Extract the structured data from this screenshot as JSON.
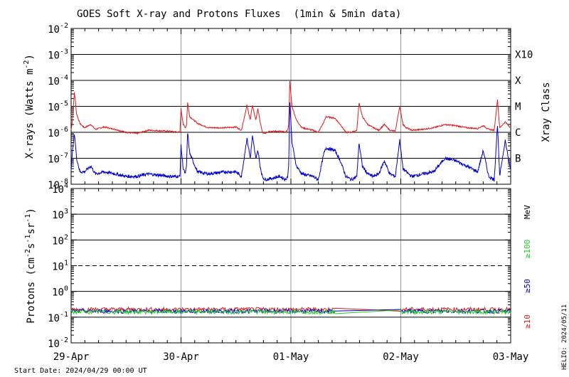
{
  "chart_data": [
    {
      "type": "line",
      "title": "GOES Soft X-ray and Protons Fluxes",
      "subtitle": "(1min & 5min data)",
      "ylabel": "X-rays (Watts m^-2)",
      "y_scale": "log",
      "ylim": [
        1e-08,
        0.01
      ],
      "y_ticks": [
        {
          "base": "10",
          "exp": "-8"
        },
        {
          "base": "10",
          "exp": "-7"
        },
        {
          "base": "10",
          "exp": "-6"
        },
        {
          "base": "10",
          "exp": "-5"
        },
        {
          "base": "10",
          "exp": "-4"
        },
        {
          "base": "10",
          "exp": "-3"
        },
        {
          "base": "10",
          "exp": "-2"
        }
      ],
      "right_axis_title": "Xray Class",
      "class_labels": [
        {
          "label": "B",
          "value": 1e-07
        },
        {
          "label": "C",
          "value": 1e-06
        },
        {
          "label": "M",
          "value": 1e-05
        },
        {
          "label": "X",
          "value": 0.0001
        },
        {
          "label": "X10",
          "value": 0.001
        }
      ],
      "grid": true,
      "x_unit": "days since 2024-04-29 00:00 UT",
      "series": [
        {
          "color": "#e41a1c",
          "points": [
            [
              0,
              1.2e-06
            ],
            [
              0.01,
              2.5e-06
            ],
            [
              0.03,
              3.5e-05
            ],
            [
              0.05,
              5e-06
            ],
            [
              0.08,
              2.2e-06
            ],
            [
              0.12,
              1.5e-06
            ],
            [
              0.18,
              2e-06
            ],
            [
              0.22,
              1.3e-06
            ],
            [
              0.3,
              1.6e-06
            ],
            [
              0.4,
              1.3e-06
            ],
            [
              0.5,
              1e-06
            ],
            [
              0.6,
              9e-07
            ],
            [
              0.7,
              1.2e-06
            ],
            [
              0.9,
              1.1e-06
            ],
            [
              0.99,
              1e-06
            ],
            [
              1.0,
              8e-06
            ],
            [
              1.02,
              2e-06
            ],
            [
              1.04,
              1.5e-06
            ],
            [
              1.05,
              2e-06
            ],
            [
              1.06,
              1.4e-05
            ],
            [
              1.08,
              4e-06
            ],
            [
              1.15,
              2.2e-06
            ],
            [
              1.25,
              1.5e-06
            ],
            [
              1.4,
              1.5e-06
            ],
            [
              1.5,
              1.6e-06
            ],
            [
              1.55,
              1.2e-06
            ],
            [
              1.6,
              1.1e-05
            ],
            [
              1.63,
              3e-06
            ],
            [
              1.65,
              1.1e-05
            ],
            [
              1.68,
              3e-06
            ],
            [
              1.7,
              8e-06
            ],
            [
              1.72,
              2.5e-06
            ],
            [
              1.74,
              1e-06
            ],
            [
              1.76,
              9e-07
            ],
            [
              1.8,
              1.1e-06
            ],
            [
              1.9,
              1.1e-06
            ],
            [
              1.95,
              1e-06
            ],
            [
              1.97,
              1.2e-06
            ],
            [
              1.98,
              2e-06
            ],
            [
              1.99,
              9e-05
            ],
            [
              2.01,
              1e-05
            ],
            [
              2.05,
              3e-06
            ],
            [
              2.1,
              1.5e-06
            ],
            [
              2.2,
              1.2e-06
            ],
            [
              2.25,
              1e-06
            ],
            [
              2.3,
              2.5e-06
            ],
            [
              2.32,
              4e-06
            ],
            [
              2.4,
              3.5e-06
            ],
            [
              2.45,
              2e-06
            ],
            [
              2.5,
              1e-06
            ],
            [
              2.55,
              1e-06
            ],
            [
              2.6,
              1.2e-06
            ],
            [
              2.62,
              1.4e-05
            ],
            [
              2.65,
              4e-06
            ],
            [
              2.7,
              2e-06
            ],
            [
              2.75,
              1.5e-06
            ],
            [
              2.8,
              1.2e-06
            ],
            [
              2.85,
              2e-06
            ],
            [
              2.9,
              1.2e-06
            ],
            [
              2.95,
              1.1e-06
            ],
            [
              2.99,
              1e-05
            ],
            [
              3.02,
              2e-06
            ],
            [
              3.05,
              1.5e-06
            ],
            [
              3.1,
              1.2e-06
            ],
            [
              3.2,
              1.3e-06
            ],
            [
              3.3,
              1.5e-06
            ],
            [
              3.4,
              2e-06
            ],
            [
              3.5,
              1.8e-06
            ],
            [
              3.6,
              1.5e-06
            ],
            [
              3.7,
              1.4e-06
            ],
            [
              3.75,
              1.8e-06
            ],
            [
              3.8,
              1.3e-06
            ],
            [
              3.85,
              1.2e-06
            ],
            [
              3.88,
              1.8e-05
            ],
            [
              3.9,
              1.5e-06
            ],
            [
              3.95,
              2.5e-06
            ],
            [
              4.0,
              1.5e-06
            ]
          ]
        },
        {
          "color": "#0000cc",
          "points": [
            [
              0,
              3e-08
            ],
            [
              0.01,
              1.5e-07
            ],
            [
              0.03,
              9e-07
            ],
            [
              0.05,
              1e-07
            ],
            [
              0.08,
              3e-08
            ],
            [
              0.12,
              3e-08
            ],
            [
              0.18,
              5e-08
            ],
            [
              0.22,
              2.5e-08
            ],
            [
              0.3,
              3e-08
            ],
            [
              0.4,
              2.5e-08
            ],
            [
              0.5,
              2e-08
            ],
            [
              0.6,
              2e-08
            ],
            [
              0.7,
              2.5e-08
            ],
            [
              0.9,
              2e-08
            ],
            [
              0.99,
              2e-08
            ],
            [
              1.0,
              3e-07
            ],
            [
              1.02,
              4e-08
            ],
            [
              1.04,
              2.5e-08
            ],
            [
              1.05,
              5e-08
            ],
            [
              1.06,
              1e-06
            ],
            [
              1.08,
              1.5e-07
            ],
            [
              1.15,
              3e-08
            ],
            [
              1.25,
              2.5e-08
            ],
            [
              1.4,
              3e-08
            ],
            [
              1.5,
              3e-08
            ],
            [
              1.55,
              2e-08
            ],
            [
              1.6,
              6e-07
            ],
            [
              1.63,
              1e-07
            ],
            [
              1.65,
              7e-07
            ],
            [
              1.68,
              1e-07
            ],
            [
              1.7,
              2e-07
            ],
            [
              1.72,
              5e-08
            ],
            [
              1.74,
              2e-08
            ],
            [
              1.76,
              1.5e-08
            ],
            [
              1.8,
              1.6e-08
            ],
            [
              1.9,
              2e-08
            ],
            [
              1.95,
              1.5e-08
            ],
            [
              1.97,
              2e-08
            ],
            [
              1.98,
              5e-08
            ],
            [
              1.99,
              1.5e-05
            ],
            [
              2.01,
              4e-07
            ],
            [
              2.05,
              5e-08
            ],
            [
              2.1,
              2.5e-08
            ],
            [
              2.2,
              2e-08
            ],
            [
              2.25,
              1.5e-08
            ],
            [
              2.3,
              1.5e-07
            ],
            [
              2.32,
              2.5e-07
            ],
            [
              2.4,
              2e-07
            ],
            [
              2.45,
              8e-08
            ],
            [
              2.5,
              2e-08
            ],
            [
              2.55,
              1.5e-08
            ],
            [
              2.6,
              2e-08
            ],
            [
              2.62,
              4e-07
            ],
            [
              2.65,
              5e-08
            ],
            [
              2.7,
              2.5e-08
            ],
            [
              2.75,
              2e-08
            ],
            [
              2.8,
              2.5e-08
            ],
            [
              2.85,
              8e-08
            ],
            [
              2.9,
              2.5e-08
            ],
            [
              2.95,
              2e-08
            ],
            [
              2.99,
              5e-07
            ],
            [
              3.02,
              4e-08
            ],
            [
              3.05,
              3e-08
            ],
            [
              3.1,
              2e-08
            ],
            [
              3.2,
              2.5e-08
            ],
            [
              3.3,
              3e-08
            ],
            [
              3.4,
              1e-07
            ],
            [
              3.5,
              8e-08
            ],
            [
              3.6,
              5e-08
            ],
            [
              3.7,
              3e-08
            ],
            [
              3.75,
              2e-07
            ],
            [
              3.8,
              2e-08
            ],
            [
              3.85,
              1.5e-08
            ],
            [
              3.88,
              2e-06
            ],
            [
              3.9,
              2e-08
            ],
            [
              3.95,
              5e-07
            ],
            [
              4.0,
              3e-08
            ]
          ]
        }
      ]
    },
    {
      "type": "line",
      "ylabel": "Protons (cm^-2 s^-1 sr^-1)",
      "y_scale": "log",
      "ylim": [
        0.01,
        10000
      ],
      "y_ticks": [
        {
          "base": "10",
          "exp": "-2"
        },
        {
          "base": "10",
          "exp": "-1"
        },
        {
          "base": "10",
          "exp": "0"
        },
        {
          "base": "10",
          "exp": "1"
        },
        {
          "base": "10",
          "exp": "2"
        },
        {
          "base": "10",
          "exp": "3"
        },
        {
          "base": "10",
          "exp": "4"
        }
      ],
      "dashed_threshold": 10,
      "grid": true,
      "legend": [
        {
          "label": "MeV",
          "color": "#000000"
        },
        {
          "label": "≥100",
          "color": "#22cc22"
        },
        {
          "label": "≥50",
          "color": "#0000cc"
        },
        {
          "label": "≥10",
          "color": "#e41a1c"
        }
      ],
      "series": [
        {
          "name": "≥10",
          "color": "#e41a1c",
          "level": 0.2
        },
        {
          "name": "≥50",
          "color": "#0000cc",
          "level": 0.17
        },
        {
          "name": "≥100",
          "color": "#22cc22",
          "level": 0.16
        }
      ],
      "gap": [
        2.4,
        3.0
      ],
      "x_ticks": [
        "29-Apr",
        "30-Apr",
        "01-May",
        "02-May",
        "03-May"
      ],
      "xlim": [
        0,
        4
      ]
    }
  ],
  "footer": {
    "start_date": "Start Date: 2024/04/29 00:00 UT",
    "helio": "HELIO: 2024/05/11"
  }
}
